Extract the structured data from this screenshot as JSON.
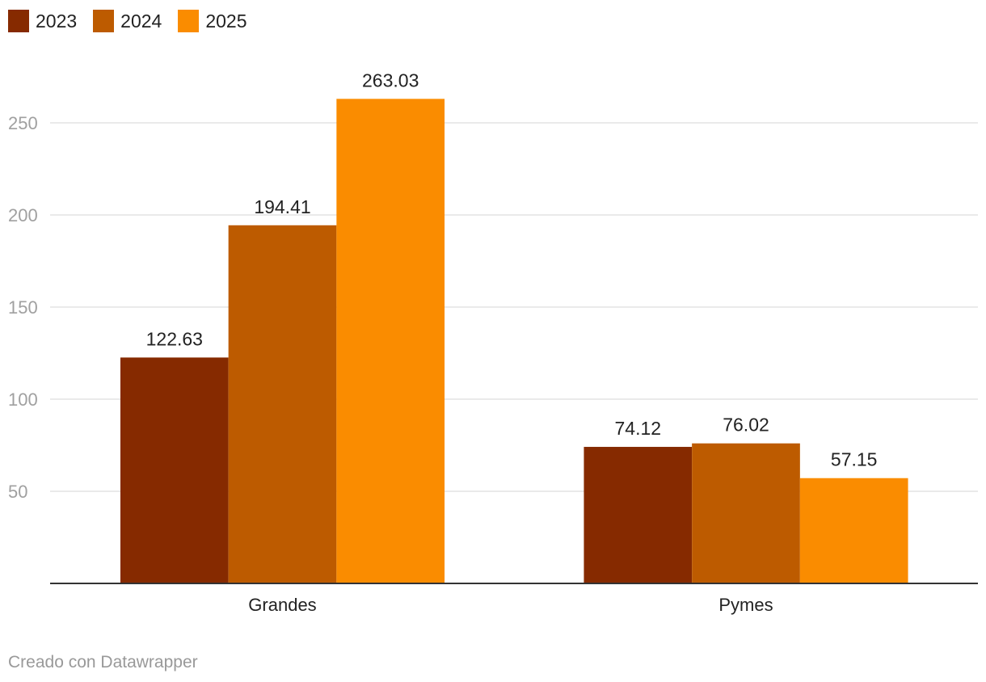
{
  "colors": {
    "2023": "#862a00",
    "2024": "#bd5b00",
    "2025": "#fa8c00",
    "grid": "#e3e3e3",
    "axis": "#333333"
  },
  "credit": "Creado con Datawrapper",
  "chart_data": {
    "type": "bar",
    "title": "",
    "xlabel": "",
    "ylabel": "",
    "categories": [
      "Grandes",
      "Pymes"
    ],
    "series": [
      {
        "name": "2023",
        "values": [
          122.63,
          74.12
        ],
        "labels": [
          "122.63",
          "74.12"
        ]
      },
      {
        "name": "2024",
        "values": [
          194.41,
          76.02
        ],
        "labels": [
          "194.41",
          "76.02"
        ]
      },
      {
        "name": "2025",
        "values": [
          263.03,
          57.15
        ],
        "labels": [
          "263.03",
          "57.15"
        ]
      }
    ],
    "yticks": [
      50,
      100,
      150,
      200,
      250
    ],
    "ylim": [
      0,
      275
    ],
    "grid": true,
    "legend_position": "top-left"
  }
}
